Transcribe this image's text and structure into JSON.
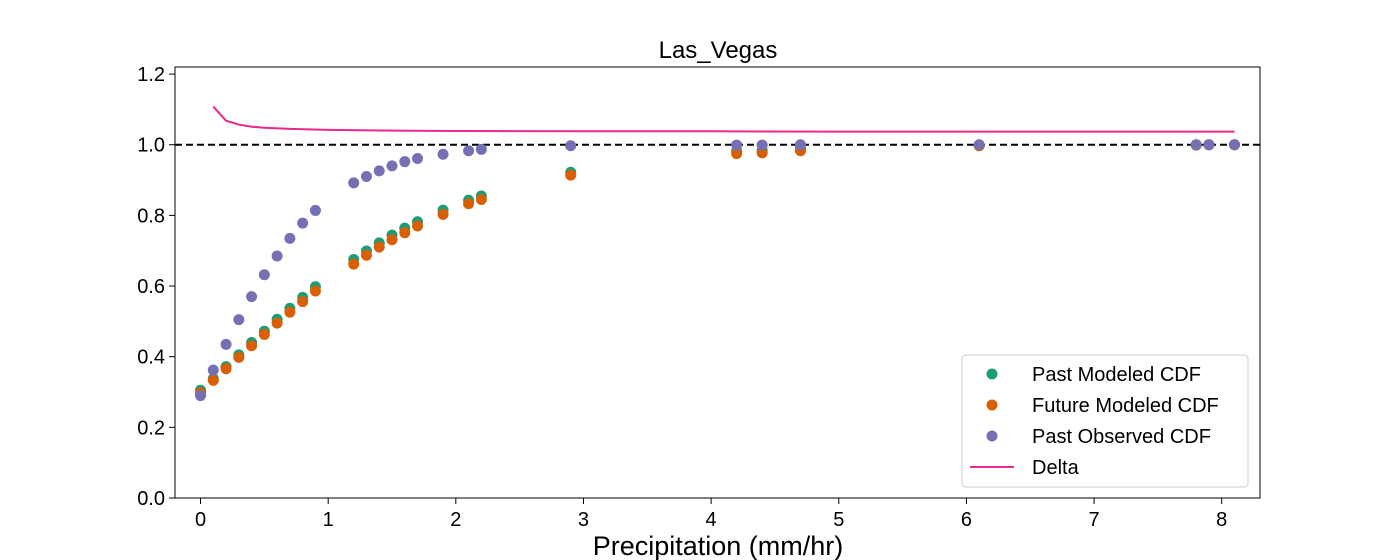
{
  "chart_data": {
    "type": "scatter",
    "title": "Las_Vegas",
    "xlabel": "Precipitation (mm/hr)",
    "ylabel": "",
    "xlim": [
      -0.2,
      8.3
    ],
    "ylim": [
      0,
      1.22
    ],
    "xticks": [
      "0",
      "1",
      "2",
      "3",
      "4",
      "5",
      "6",
      "7",
      "8"
    ],
    "yticks": [
      "0.0",
      "0.2",
      "0.4",
      "0.6",
      "0.8",
      "1.0",
      "1.2"
    ],
    "grid": false,
    "legend_position": "lower-right",
    "reference_line": {
      "y": 1.0,
      "style": "dashed",
      "color": "#000000"
    },
    "series": [
      {
        "name": "Past Modeled CDF",
        "kind": "scatter",
        "color": "#1b9e77",
        "points": [
          [
            0.0,
            0.305
          ],
          [
            0.1,
            0.338
          ],
          [
            0.2,
            0.372
          ],
          [
            0.3,
            0.405
          ],
          [
            0.4,
            0.44
          ],
          [
            0.5,
            0.472
          ],
          [
            0.6,
            0.506
          ],
          [
            0.7,
            0.537
          ],
          [
            0.8,
            0.568
          ],
          [
            0.9,
            0.598
          ],
          [
            1.2,
            0.675
          ],
          [
            1.3,
            0.699
          ],
          [
            1.4,
            0.722
          ],
          [
            1.5,
            0.744
          ],
          [
            1.6,
            0.764
          ],
          [
            1.7,
            0.782
          ],
          [
            1.9,
            0.815
          ],
          [
            2.1,
            0.843
          ],
          [
            2.2,
            0.855
          ],
          [
            2.9,
            0.922
          ],
          [
            4.2,
            0.982
          ],
          [
            4.4,
            0.984
          ],
          [
            4.7,
            0.99
          ],
          [
            6.1,
            0.998
          ],
          [
            7.8,
            1.0
          ],
          [
            7.9,
            1.0
          ],
          [
            8.1,
            1.0
          ]
        ]
      },
      {
        "name": "Future Modeled CDF",
        "kind": "scatter",
        "color": "#d95f02",
        "points": [
          [
            0.0,
            0.298
          ],
          [
            0.1,
            0.333
          ],
          [
            0.2,
            0.366
          ],
          [
            0.3,
            0.398
          ],
          [
            0.4,
            0.431
          ],
          [
            0.5,
            0.463
          ],
          [
            0.6,
            0.495
          ],
          [
            0.7,
            0.526
          ],
          [
            0.8,
            0.556
          ],
          [
            0.9,
            0.586
          ],
          [
            1.2,
            0.662
          ],
          [
            1.3,
            0.687
          ],
          [
            1.4,
            0.71
          ],
          [
            1.5,
            0.731
          ],
          [
            1.6,
            0.751
          ],
          [
            1.7,
            0.77
          ],
          [
            1.9,
            0.803
          ],
          [
            2.1,
            0.833
          ],
          [
            2.2,
            0.845
          ],
          [
            2.9,
            0.914
          ],
          [
            4.2,
            0.975
          ],
          [
            4.4,
            0.977
          ],
          [
            4.7,
            0.983
          ],
          [
            6.1,
            0.997
          ],
          [
            7.8,
            0.999
          ],
          [
            7.9,
            1.0
          ],
          [
            8.1,
            1.0
          ]
        ]
      },
      {
        "name": "Past Observed CDF",
        "kind": "scatter",
        "color": "#7570b3",
        "points": [
          [
            0.0,
            0.29
          ],
          [
            0.1,
            0.362
          ],
          [
            0.2,
            0.435
          ],
          [
            0.3,
            0.505
          ],
          [
            0.4,
            0.57
          ],
          [
            0.5,
            0.632
          ],
          [
            0.6,
            0.685
          ],
          [
            0.7,
            0.735
          ],
          [
            0.8,
            0.778
          ],
          [
            0.9,
            0.814
          ],
          [
            1.2,
            0.892
          ],
          [
            1.3,
            0.91
          ],
          [
            1.4,
            0.926
          ],
          [
            1.5,
            0.94
          ],
          [
            1.6,
            0.952
          ],
          [
            1.7,
            0.961
          ],
          [
            1.9,
            0.973
          ],
          [
            2.1,
            0.983
          ],
          [
            2.2,
            0.987
          ],
          [
            2.9,
            0.997
          ],
          [
            4.2,
            0.999
          ],
          [
            4.4,
            0.999
          ],
          [
            4.7,
            1.0
          ],
          [
            6.1,
            1.0
          ],
          [
            7.8,
            1.0
          ],
          [
            7.9,
            1.0
          ],
          [
            8.1,
            1.0
          ]
        ]
      },
      {
        "name": "Delta",
        "kind": "line",
        "color": "#e7298a",
        "points": [
          [
            0.1,
            1.108
          ],
          [
            0.2,
            1.068
          ],
          [
            0.3,
            1.057
          ],
          [
            0.4,
            1.051
          ],
          [
            0.5,
            1.048
          ],
          [
            0.7,
            1.045
          ],
          [
            1.0,
            1.042
          ],
          [
            1.5,
            1.04
          ],
          [
            2.0,
            1.039
          ],
          [
            3.0,
            1.038
          ],
          [
            4.0,
            1.038
          ],
          [
            5.0,
            1.037
          ],
          [
            6.0,
            1.037
          ],
          [
            7.0,
            1.037
          ],
          [
            8.1,
            1.037
          ]
        ]
      }
    ]
  }
}
